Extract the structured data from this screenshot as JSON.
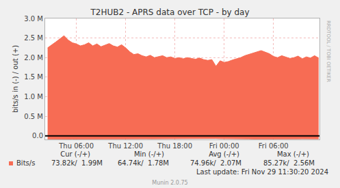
{
  "chart_data": {
    "type": "area",
    "title": "T2HUB2 - APRS data over TCP - by day",
    "y_label": "bits/s in (-) / out (+)",
    "x": [
      2.5,
      3,
      3.5,
      4,
      4.5,
      5,
      5.5,
      6,
      6.5,
      7,
      7.5,
      8,
      8.5,
      9,
      9.5,
      10,
      10.5,
      11,
      11.5,
      12,
      12.5,
      13,
      13.5,
      14,
      14.5,
      15,
      15.5,
      16,
      16.5,
      17,
      17.5,
      18,
      18.5,
      19,
      19.5,
      20,
      20.5,
      21,
      21.5,
      22,
      22.5,
      23,
      23.5,
      24,
      24.5,
      25,
      25.5,
      26,
      26.5,
      27,
      27.5,
      28,
      28.5,
      29,
      29.5,
      30,
      30.5,
      31,
      31.5,
      32,
      32.5,
      33,
      33.5,
      34,
      34.5,
      35,
      35.5
    ],
    "xlim": [
      2.2,
      35.6
    ],
    "xticks": [
      {
        "value": 6,
        "label": "Thu 06:00"
      },
      {
        "value": 12,
        "label": "Thu 12:00"
      },
      {
        "value": 18,
        "label": "Thu 18:00"
      },
      {
        "value": 24,
        "label": "Fri 00:00"
      },
      {
        "value": 30,
        "label": "Fri 06:00"
      }
    ],
    "ylim": [
      -90000,
      3000000
    ],
    "yticks": [
      {
        "value": 0,
        "label": "0.0"
      },
      {
        "value": 500000,
        "label": "0.5 M"
      },
      {
        "value": 1000000,
        "label": "1.0 M"
      },
      {
        "value": 1500000,
        "label": "1.5 M"
      },
      {
        "value": 2000000,
        "label": "2.0 M"
      },
      {
        "value": 2500000,
        "label": "2.5 M"
      },
      {
        "value": 3000000,
        "label": "3.0 M"
      }
    ],
    "grid": true,
    "series": [
      {
        "name": "Bits/s",
        "color": "#f76c54",
        "values": [
          2250000,
          2320000,
          2400000,
          2480000,
          2560000,
          2450000,
          2380000,
          2350000,
          2300000,
          2330000,
          2380000,
          2300000,
          2350000,
          2280000,
          2320000,
          2360000,
          2300000,
          2270000,
          2330000,
          2250000,
          2150000,
          2080000,
          2100000,
          2050000,
          2020000,
          2060000,
          2000000,
          2030000,
          2050000,
          2000000,
          2020000,
          1980000,
          2000000,
          1970000,
          2000000,
          1980000,
          1960000,
          1990000,
          1950000,
          1930000,
          1950000,
          1780000,
          1920000,
          1880000,
          1900000,
          1940000,
          1970000,
          2000000,
          2050000,
          2080000,
          2120000,
          2150000,
          2180000,
          2140000,
          2100000,
          2030000,
          2000000,
          2050000,
          2020000,
          1980000,
          2000000,
          2040000,
          1970000,
          2020000,
          1990000,
          2050000,
          1990000
        ]
      },
      {
        "color": "#f76c54",
        "values": [
          -76000,
          -78000,
          -80000,
          -82000,
          -85000,
          -80000,
          -78000,
          -77000,
          -76000,
          -77000,
          -78000,
          -76000,
          -77000,
          -75000,
          -76000,
          -77000,
          -76000,
          -75000,
          -76000,
          -75000,
          -74000,
          -73000,
          -74000,
          -73000,
          -72000,
          -73000,
          -72000,
          -73000,
          -73000,
          -72000,
          -72000,
          -71000,
          -72000,
          -71000,
          -72000,
          -71000,
          -70000,
          -71000,
          -70000,
          -69000,
          -70000,
          -64740,
          -69000,
          -68000,
          -69000,
          -70000,
          -71000,
          -72000,
          -73000,
          -74000,
          -75000,
          -76000,
          -77000,
          -76000,
          -75000,
          -74000,
          -73000,
          -74000,
          -74000,
          -73000,
          -73000,
          -74000,
          -72000,
          -73000,
          -73000,
          -74000,
          -73820
        ]
      }
    ],
    "legend_table": {
      "headers": [
        "Cur (-/+)",
        "Min (-/+)",
        "Avg (-/+)",
        "Max (-/+)"
      ],
      "cells": [
        "73.82k/  1.99M",
        "64.74k/  1.78M",
        "74.96k/  2.07M",
        "85.27k/  2.56M"
      ]
    },
    "last_update": "Last update: Fri Nov 29 11:30:20 2024",
    "footer": "Munin 2.0.75",
    "side_text": "RRDTOOL / TOBI OETIKER"
  }
}
